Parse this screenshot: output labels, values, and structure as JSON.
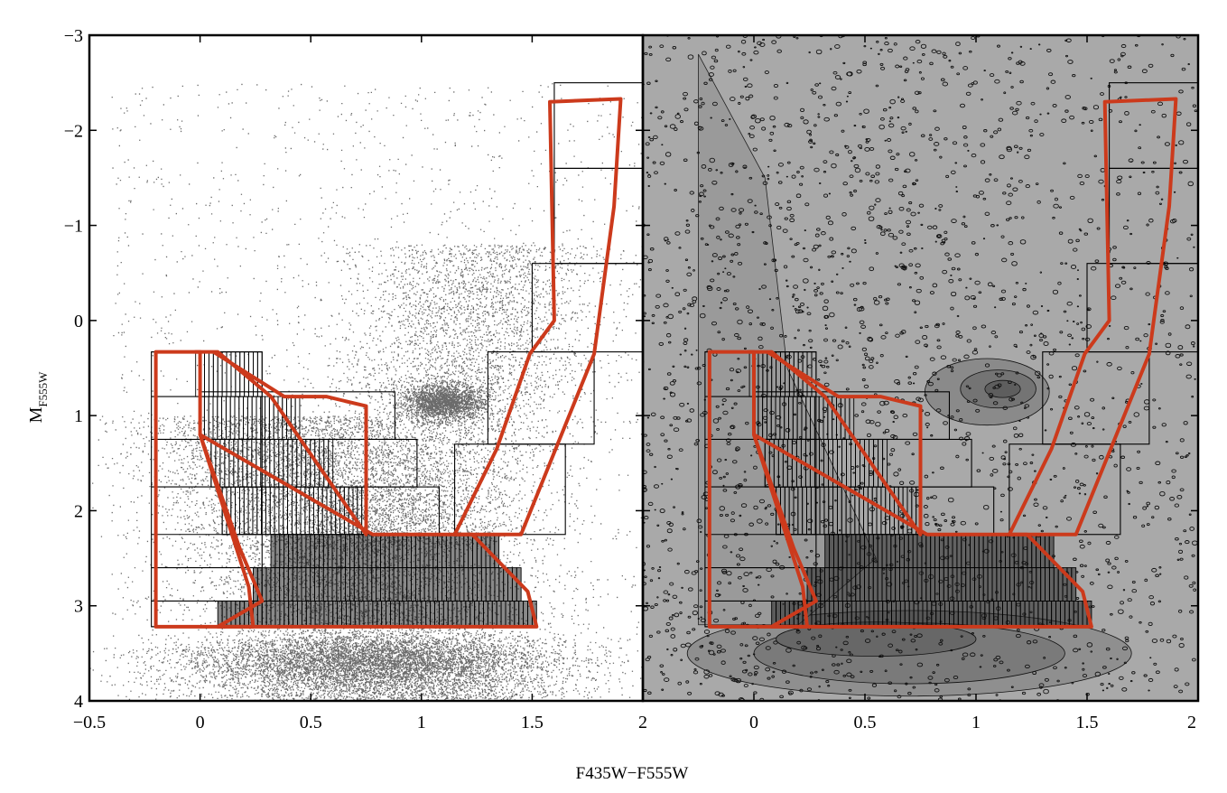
{
  "chart_data": {
    "type": "scatter",
    "panels": [
      {
        "name": "left",
        "rendering": "scatter points"
      },
      {
        "name": "right",
        "rendering": "density contours"
      }
    ],
    "xlabel": "F435W−F555W",
    "ylabel": {
      "main": "M",
      "sub": "F555W"
    },
    "xlim": [
      -0.5,
      2
    ],
    "ylim": [
      4,
      -3
    ],
    "y_inverted": true,
    "xticks_left": [
      "−0.5",
      "0",
      "0.5",
      "1",
      "1.5",
      "2"
    ],
    "xticks_right": [
      "0",
      "0.5",
      "1",
      "1.5",
      "2"
    ],
    "xtick_values_left": [
      -0.5,
      0,
      0.5,
      1,
      1.5,
      2
    ],
    "xtick_values_right": [
      0,
      0.5,
      1,
      1.5,
      2
    ],
    "yticks": [
      "−3",
      "−2",
      "−1",
      "0",
      "1",
      "2",
      "3",
      "4"
    ],
    "ytick_values": [
      -3,
      -2,
      -1,
      0,
      1,
      2,
      3,
      4
    ],
    "red_regions": [
      {
        "name": "blue-edge",
        "points": [
          [
            -0.2,
            0.33
          ],
          [
            0.0,
            0.33
          ],
          [
            0.0,
            1.2
          ],
          [
            0.22,
            2.8
          ],
          [
            0.24,
            3.22
          ],
          [
            -0.2,
            3.22
          ]
        ]
      },
      {
        "name": "main-sequence-band",
        "points": [
          [
            -0.02,
            0.33
          ],
          [
            0.08,
            0.33
          ],
          [
            0.32,
            0.8
          ],
          [
            0.75,
            2.25
          ],
          [
            0.75,
            0.9
          ],
          [
            0.57,
            0.8
          ],
          [
            0.38,
            0.8
          ],
          [
            0.06,
            0.33
          ]
        ]
      },
      {
        "name": "lower-ms",
        "points": [
          [
            0.0,
            1.2
          ],
          [
            0.18,
            2.4
          ],
          [
            0.28,
            2.95
          ],
          [
            0.08,
            3.22
          ],
          [
            1.52,
            3.22
          ],
          [
            1.48,
            2.85
          ],
          [
            1.23,
            2.25
          ],
          [
            0.78,
            2.25
          ]
        ]
      },
      {
        "name": "red-giant-branch",
        "points": [
          [
            1.58,
            -2.3
          ],
          [
            1.9,
            -2.33
          ],
          [
            1.87,
            -1.2
          ],
          [
            1.78,
            0.35
          ],
          [
            1.45,
            2.25
          ],
          [
            1.15,
            2.25
          ],
          [
            1.34,
            1.35
          ],
          [
            1.49,
            0.35
          ],
          [
            1.6,
            0.0
          ]
        ]
      }
    ],
    "boxes": [
      {
        "x": [
          1.6,
          2.0
        ],
        "y": [
          -2.5,
          -1.6
        ]
      },
      {
        "x": [
          1.6,
          2.0
        ],
        "y": [
          -1.6,
          -0.6
        ]
      },
      {
        "x": [
          1.5,
          2.0
        ],
        "y": [
          -0.6,
          0.33
        ]
      },
      {
        "x": [
          1.3,
          1.78
        ],
        "y": [
          0.33,
          1.3
        ]
      },
      {
        "x": [
          1.15,
          1.65
        ],
        "y": [
          1.3,
          2.25
        ]
      },
      {
        "x": [
          -0.22,
          0.28
        ],
        "y": [
          0.33,
          3.22
        ]
      },
      {
        "x": [
          0.0,
          0.88
        ],
        "y": [
          0.75,
          1.25
        ]
      },
      {
        "x": [
          0.05,
          0.98
        ],
        "y": [
          1.25,
          1.75
        ]
      },
      {
        "x": [
          0.1,
          1.08
        ],
        "y": [
          1.75,
          2.25
        ]
      }
    ],
    "row_bands": [
      0.33,
      0.8,
      1.25,
      1.75,
      2.25,
      2.6,
      2.95,
      3.22
    ],
    "clumps": [
      {
        "name": "red-clump",
        "x": 1.1,
        "y": 0.85
      },
      {
        "name": "main-sequence-turnoff",
        "x": 0.7,
        "y": 3.5
      }
    ]
  }
}
